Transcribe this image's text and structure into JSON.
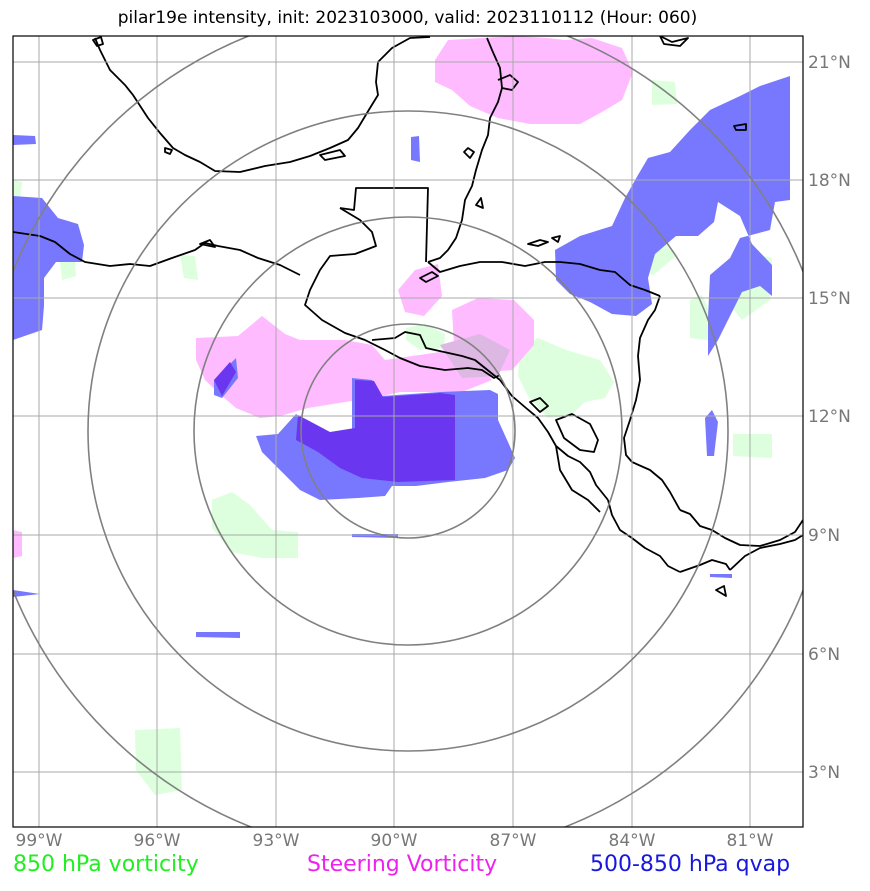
{
  "title": "pilar19e intensity, init: 2023103000, valid: 2023110112 (Hour: 060)",
  "map": {
    "lon_ticks": [
      "99°W",
      "96°W",
      "93°W",
      "90°W",
      "87°W",
      "84°W",
      "81°W"
    ],
    "lat_ticks": [
      "21°N",
      "18°N",
      "15°N",
      "12°N",
      "9°N",
      "6°N",
      "3°N"
    ],
    "storm_center": {
      "lon": -90.3,
      "lat": 11.7
    },
    "range_ring_count": 4
  },
  "legend": {
    "green": {
      "label": "850 hPa vorticity",
      "color": "#22ee22"
    },
    "magenta": {
      "label": "Steering Vorticity",
      "color": "#ee22ee"
    },
    "blue": {
      "label": "500-850 hPa qvap",
      "color": "#1818dd"
    }
  },
  "colors": {
    "vort850_fill": "#ddffdd",
    "steering_fill": "#ffbbff",
    "qvap_fill": "#7878ff",
    "qvap_dark_fill": "#6a36f0",
    "grid": "#a0a0a0",
    "rings": "#808080",
    "coast": "#000000"
  }
}
